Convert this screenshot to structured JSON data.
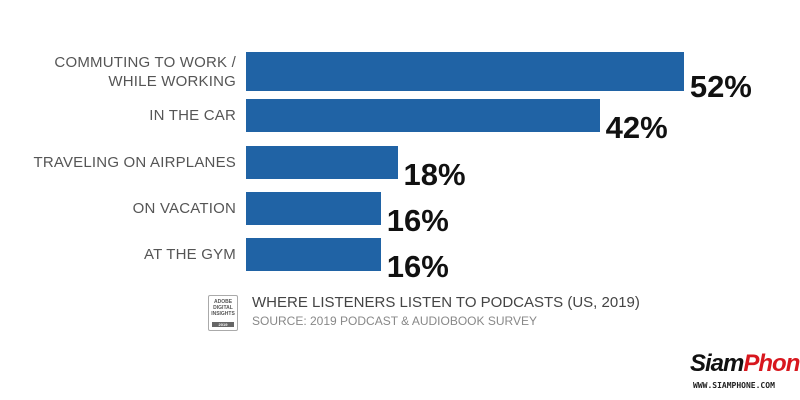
{
  "chart_data": {
    "type": "bar",
    "orientation": "horizontal",
    "title": "WHERE LISTENERS LISTEN TO PODCASTS (US, 2019)",
    "source": "SOURCE: 2019 PODCAST & AUDIOBOOK SURVEY",
    "categories": [
      [
        "COMMUTING TO WORK /",
        "WHILE WORKING"
      ],
      [
        "IN THE CAR"
      ],
      [
        "TRAVELING ON AIRPLANES"
      ],
      [
        "ON VACATION"
      ],
      [
        "AT THE GYM"
      ]
    ],
    "values": [
      52,
      42,
      18,
      16,
      16
    ],
    "value_labels": [
      "52%",
      "42%",
      "18%",
      "16%",
      "16%"
    ],
    "unit": "%",
    "bar_color": "#2063a5",
    "grid": false
  },
  "logo": {
    "lines": [
      "ADOBE",
      "DIGITAL",
      "INSIGHTS"
    ],
    "year": "2019"
  },
  "watermark": {
    "brand_a": "Siam",
    "brand_b": "Phone",
    "url": "WWW.SIAMPHONE.COM"
  }
}
